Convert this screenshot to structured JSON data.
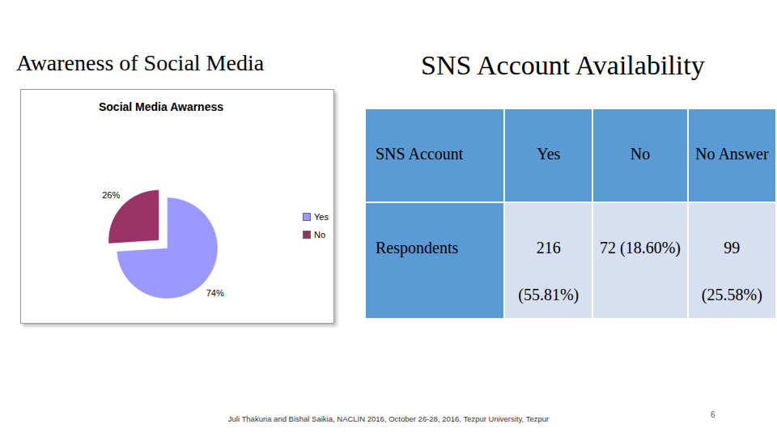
{
  "headings": [
    "Awareness of Social Media",
    "SNS Account Availability"
  ],
  "chart_data": {
    "type": "pie",
    "title": "Social Media Awarness",
    "categories": [
      "Yes",
      "No"
    ],
    "values": [
      74,
      26
    ],
    "value_labels": [
      "74%",
      "26%"
    ],
    "data_labels": true,
    "colors": [
      "#9999ff",
      "#993366"
    ],
    "legend": "right"
  },
  "table": {
    "header": [
      "SNS Account",
      "Yes",
      "No",
      "No Answer"
    ],
    "rows": [
      [
        "Respondents",
        "216 (55.81%)",
        "72 (18.60%)",
        "99 (25.58%)"
      ]
    ]
  },
  "footer": "Juli Thakuria and Bishal Saikia, NACLIN 2016,  October 26-28, 2016, Tezpur University, Tezpur",
  "page_number": "6"
}
